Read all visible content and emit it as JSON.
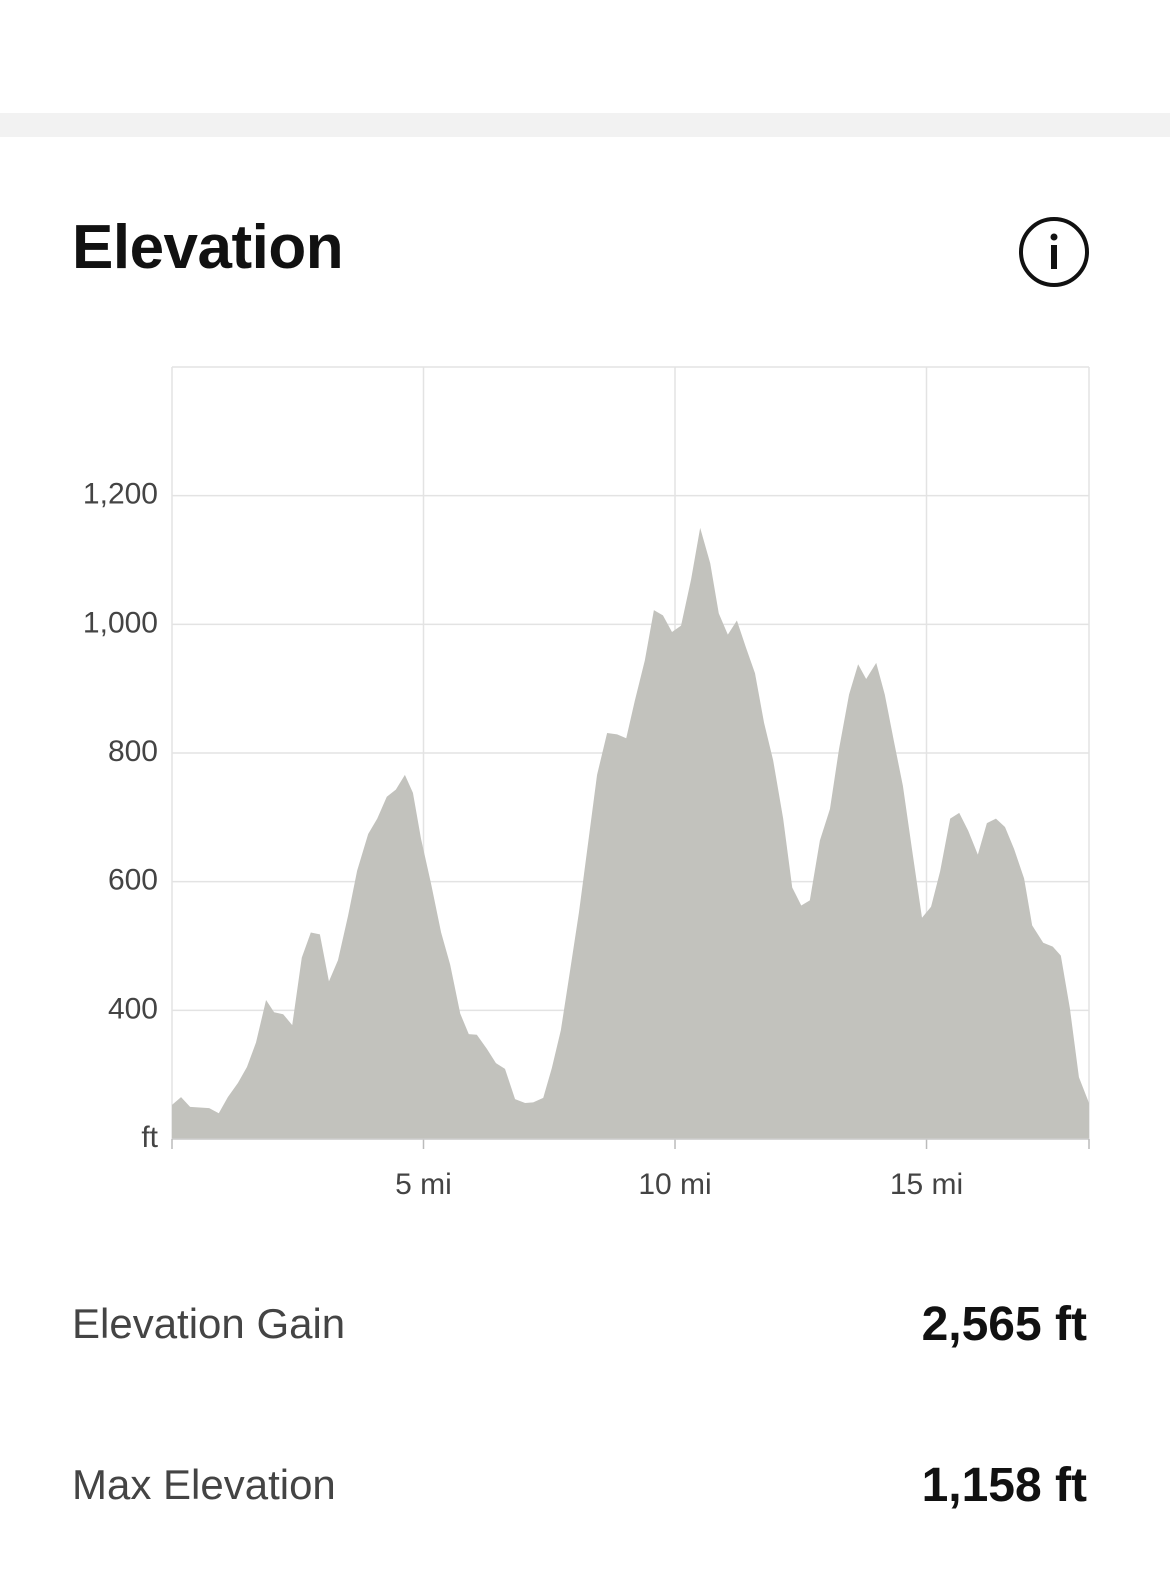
{
  "header": {
    "title": "Elevation"
  },
  "chart_data": {
    "type": "area",
    "x": [
      0,
      0.18,
      0.36,
      0.74,
      0.93,
      1.11,
      1.31,
      1.49,
      1.67,
      1.87,
      2.03,
      2.21,
      2.39,
      2.58,
      2.76,
      2.94,
      3.12,
      3.3,
      3.5,
      3.68,
      3.9,
      4.08,
      4.27,
      4.45,
      4.63,
      4.79,
      4.95,
      5.15,
      5.35,
      5.53,
      5.73,
      5.9,
      6.06,
      6.26,
      6.44,
      6.62,
      6.82,
      7.02,
      7.18,
      7.38,
      7.55,
      7.73,
      7.91,
      8.09,
      8.27,
      8.45,
      8.65,
      8.85,
      9.03,
      9.2,
      9.4,
      9.58,
      9.76,
      9.94,
      10.12,
      10.32,
      10.5,
      10.7,
      10.87,
      11.05,
      11.23,
      11.41,
      11.59,
      11.77,
      11.95,
      12.15,
      12.33,
      12.51,
      12.68,
      12.88,
      13.08,
      13.26,
      13.46,
      13.64,
      13.8,
      14.0,
      14.17,
      14.35,
      14.53,
      14.71,
      14.91,
      15.09,
      15.27,
      15.47,
      15.65,
      15.83,
      16.02,
      16.2,
      16.38,
      16.56,
      16.74,
      16.94,
      17.1,
      17.32,
      17.51,
      17.67,
      17.85,
      18.03,
      18.23
    ],
    "values": [
      253,
      265,
      250,
      248,
      240,
      265,
      287,
      312,
      350,
      416,
      397,
      394,
      377,
      482,
      521,
      518,
      445,
      478,
      547,
      617,
      674,
      698,
      732,
      743,
      766,
      738,
      667,
      597,
      521,
      471,
      395,
      363,
      362,
      340,
      318,
      309,
      262,
      256,
      257,
      264,
      310,
      369,
      460,
      552,
      659,
      766,
      831,
      829,
      823,
      881,
      944,
      1022,
      1014,
      988,
      998,
      1070,
      1150,
      1095,
      1017,
      984,
      1006,
      964,
      924,
      847,
      789,
      698,
      591,
      563,
      571,
      664,
      713,
      806,
      891,
      938,
      915,
      940,
      891,
      819,
      749,
      651,
      544,
      561,
      616,
      698,
      707,
      679,
      642,
      691,
      698,
      685,
      651,
      605,
      532,
      505,
      499,
      485,
      403,
      296,
      256
    ],
    "color": "#c2c2bd",
    "xlim": [
      0,
      18.23
    ],
    "ylim": [
      200,
      1400
    ],
    "xticks": [
      {
        "value": 5,
        "label": "5 mi"
      },
      {
        "value": 10,
        "label": "10 mi"
      },
      {
        "value": 15,
        "label": "15 mi"
      }
    ],
    "yticks": [
      {
        "value": 200,
        "label": "ft"
      },
      400,
      600,
      800,
      {
        "value": 1000,
        "label": "1,000"
      },
      {
        "value": 1200,
        "label": "1,200"
      }
    ],
    "grid": true
  },
  "stats": [
    {
      "label": "Elevation Gain",
      "value": "2,565 ft"
    },
    {
      "label": "Max Elevation",
      "value": "1,158 ft"
    }
  ]
}
